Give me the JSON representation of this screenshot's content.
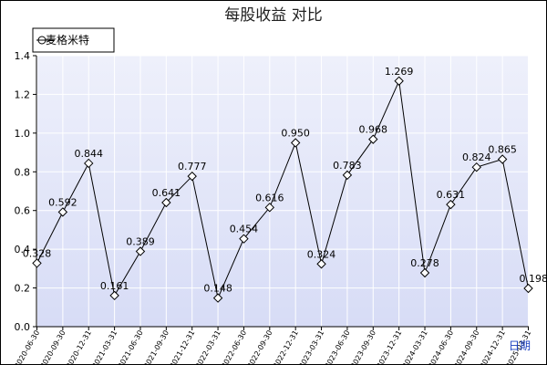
{
  "chart_data": {
    "type": "line",
    "title": "每股收益  对比",
    "xlabel": "日期",
    "ylabel": "",
    "ylim": [
      0,
      1.4
    ],
    "yticks": [
      "0.0",
      "0.2",
      "0.4",
      "0.6",
      "0.8",
      "1.0",
      "1.2",
      "1.4"
    ],
    "grid": true,
    "legend_position": "top-left",
    "categories": [
      "2020-06-30",
      "2020-09-30",
      "2020-12-31",
      "2021-03-31",
      "2021-06-30",
      "2021-09-30",
      "2021-12-31",
      "2022-03-31",
      "2022-06-30",
      "2022-09-30",
      "2022-12-31",
      "2023-03-31",
      "2023-06-30",
      "2023-09-30",
      "2023-12-31",
      "2024-03-31",
      "2024-06-30",
      "2024-09-30",
      "2024-12-31",
      "2025-03-31"
    ],
    "series": [
      {
        "name": "麦格米特",
        "values": [
          0.328,
          0.592,
          0.844,
          0.161,
          0.389,
          0.641,
          0.777,
          0.148,
          0.454,
          0.616,
          0.95,
          0.324,
          0.783,
          0.968,
          1.269,
          0.278,
          0.631,
          0.824,
          0.865,
          0.198
        ],
        "labels": [
          "0.328",
          "0.592",
          "0.844",
          "0.161",
          "0.389",
          "0.641",
          "0.777",
          "0.148",
          "0.454",
          "0.616",
          "0.950",
          "0.324",
          "0.783",
          "0.968",
          "1.269",
          "0.278",
          "0.631",
          "0.824",
          "0.865",
          "0.198"
        ]
      }
    ]
  },
  "colors": {
    "plot_bg_top": "#eef0fb",
    "plot_bg_bottom": "#d7dcf6",
    "grid": "#ffffff",
    "line": "#000000",
    "axis_label": "#1a3fbf"
  }
}
